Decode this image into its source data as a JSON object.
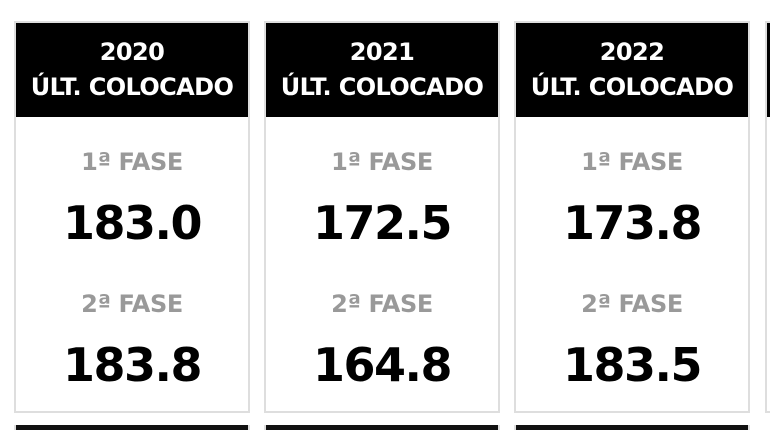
{
  "cards": [
    {
      "year": "2020",
      "subtitle": "ÚLT. COLOCADO",
      "phase1_label": "1ª FASE",
      "phase1_value": "183.0",
      "phase2_label": "2ª FASE",
      "phase2_value": "183.8"
    },
    {
      "year": "2021",
      "subtitle": "ÚLT. COLOCADO",
      "phase1_label": "1ª FASE",
      "phase1_value": "172.5",
      "phase2_label": "2ª FASE",
      "phase2_value": "164.8"
    },
    {
      "year": "2022",
      "subtitle": "ÚLT. COLOCADO",
      "phase1_label": "1ª FASE",
      "phase1_value": "173.8",
      "phase2_label": "2ª FASE",
      "phase2_value": "183.5"
    }
  ],
  "colors": {
    "header_background": "#000000",
    "header_text": "#ffffff",
    "phase_label": "#999999",
    "phase_value": "#000000",
    "card_border": "#dedede"
  }
}
